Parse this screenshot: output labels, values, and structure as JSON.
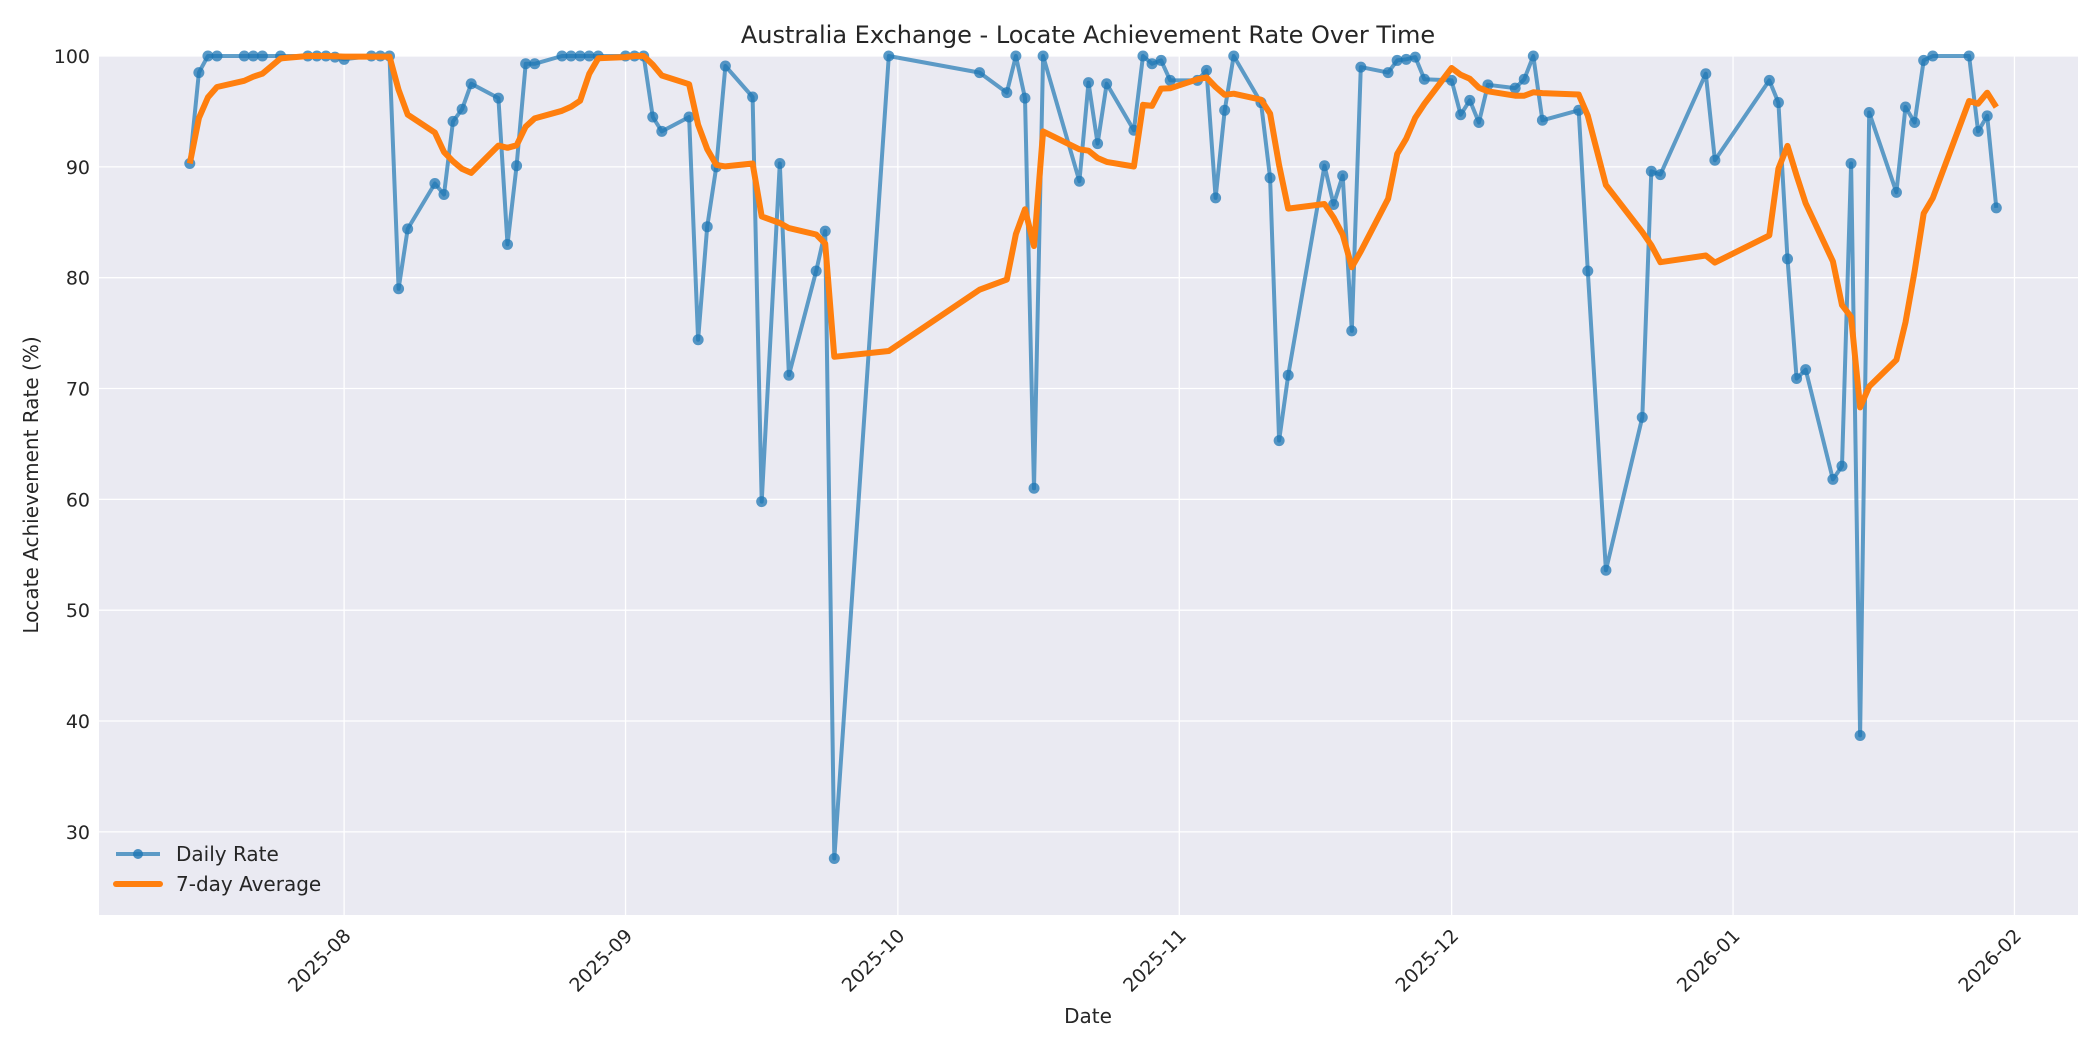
{
  "chart_data": {
    "type": "line",
    "title": "Australia Exchange - Locate Achievement Rate Over Time",
    "xlabel": "Date",
    "ylabel": "Locate Achievement Rate (%)",
    "xlim": [
      "2025-07-05",
      "2026-02-08"
    ],
    "ylim": [
      22.5,
      100
    ],
    "grid": true,
    "legend_position": "bottom-left",
    "x_ticks": [
      "2025-08",
      "2025-09",
      "2025-10",
      "2025-11",
      "2025-12",
      "2026-01",
      "2026-02"
    ],
    "y_ticks": [
      30,
      40,
      50,
      60,
      70,
      80,
      90,
      100
    ],
    "colors": {
      "daily": "#1f77b4",
      "average": "#ff7f0e",
      "plot_bg": "#eaeaf2",
      "grid": "#ffffff"
    },
    "series": [
      {
        "name": "Daily Rate",
        "style": "line-with-markers",
        "x": [
          "2025-07-15",
          "2025-07-16",
          "2025-07-17",
          "2025-07-18",
          "2025-07-21",
          "2025-07-22",
          "2025-07-23",
          "2025-07-25",
          "2025-07-28",
          "2025-07-29",
          "2025-07-30",
          "2025-07-31",
          "2025-08-01",
          "2025-08-04",
          "2025-08-05",
          "2025-08-06",
          "2025-08-07",
          "2025-08-08",
          "2025-08-11",
          "2025-08-12",
          "2025-08-13",
          "2025-08-14",
          "2025-08-15",
          "2025-08-18",
          "2025-08-19",
          "2025-08-20",
          "2025-08-21",
          "2025-08-22",
          "2025-08-25",
          "2025-08-26",
          "2025-08-27",
          "2025-08-28",
          "2025-08-29",
          "2025-09-01",
          "2025-09-02",
          "2025-09-03",
          "2025-09-04",
          "2025-09-05",
          "2025-09-08",
          "2025-09-09",
          "2025-09-10",
          "2025-09-11",
          "2025-09-12",
          "2025-09-15",
          "2025-09-16",
          "2025-09-18",
          "2025-09-19",
          "2025-09-22",
          "2025-09-23",
          "2025-09-24",
          "2025-09-30",
          "2025-10-10",
          "2025-10-13",
          "2025-10-14",
          "2025-10-15",
          "2025-10-16",
          "2025-10-17",
          "2025-10-21",
          "2025-10-22",
          "2025-10-23",
          "2025-10-24",
          "2025-10-27",
          "2025-10-28",
          "2025-10-29",
          "2025-10-30",
          "2025-10-31",
          "2025-11-03",
          "2025-11-04",
          "2025-11-05",
          "2025-11-06",
          "2025-11-07",
          "2025-11-10",
          "2025-11-11",
          "2025-11-12",
          "2025-11-13",
          "2025-11-17",
          "2025-11-18",
          "2025-11-19",
          "2025-11-20",
          "2025-11-21",
          "2025-11-24",
          "2025-11-25",
          "2025-11-26",
          "2025-11-27",
          "2025-11-28",
          "2025-12-01",
          "2025-12-02",
          "2025-12-03",
          "2025-12-04",
          "2025-12-05",
          "2025-12-08",
          "2025-12-09",
          "2025-12-10",
          "2025-12-11",
          "2025-12-15",
          "2025-12-16",
          "2025-12-18",
          "2025-12-22",
          "2025-12-23",
          "2025-12-24",
          "2025-12-29",
          "2025-12-30",
          "2026-01-05",
          "2026-01-06",
          "2026-01-07",
          "2026-01-08",
          "2026-01-09",
          "2026-01-12",
          "2026-01-13",
          "2026-01-14",
          "2026-01-15",
          "2026-01-16",
          "2026-01-19",
          "2026-01-20",
          "2026-01-21",
          "2026-01-22",
          "2026-01-23",
          "2026-01-27",
          "2026-01-28",
          "2026-01-29",
          "2026-01-30"
        ],
        "values": [
          90.3,
          98.5,
          100,
          100,
          100,
          100,
          100,
          100,
          100,
          100,
          100,
          99.9,
          99.7,
          100,
          100,
          100,
          79.0,
          84.4,
          88.5,
          87.5,
          94.1,
          95.2,
          97.5,
          96.2,
          83.0,
          90.1,
          99.3,
          99.3,
          100,
          100,
          100,
          100,
          100,
          100,
          100,
          100,
          94.5,
          93.2,
          94.5,
          74.4,
          84.6,
          90.0,
          99.1,
          96.3,
          59.8,
          90.3,
          71.2,
          80.6,
          84.2,
          27.6,
          100,
          98.5,
          96.7,
          100,
          96.2,
          61.0,
          100,
          88.7,
          97.6,
          92.1,
          97.5,
          93.3,
          100,
          99.3,
          99.6,
          97.8,
          97.8,
          98.7,
          87.2,
          95.1,
          100,
          95.8,
          89.0,
          65.3,
          71.2,
          90.1,
          86.6,
          89.2,
          75.2,
          99.0,
          98.5,
          99.6,
          99.7,
          99.9,
          97.9,
          97.8,
          94.7,
          96.0,
          94.0,
          97.4,
          97.1,
          97.9,
          100,
          94.2,
          95.1,
          80.6,
          53.6,
          67.4,
          89.6,
          89.3,
          98.4,
          90.6,
          97.8,
          95.8,
          81.7,
          70.9,
          71.7,
          61.8,
          63.0,
          90.3,
          38.7,
          94.9,
          87.7,
          95.4,
          94.0,
          99.6,
          100,
          100,
          93.2,
          94.6,
          86.3
        ]
      },
      {
        "name": "7-day Average",
        "style": "line",
        "rolling_window": 7,
        "source": "Daily Rate"
      }
    ]
  }
}
